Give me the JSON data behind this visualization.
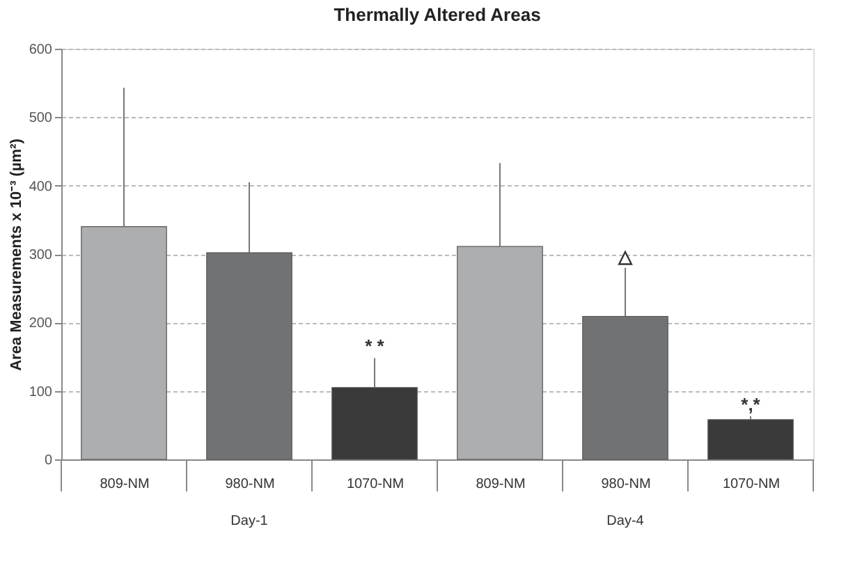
{
  "chart_data": {
    "type": "bar",
    "title": "Thermally Altered Areas",
    "ylabel": "Area Measurements x 10⁻³ (µm²)",
    "categories": [
      "809-NM",
      "980-NM",
      "1070-NM",
      "809-NM",
      "980-NM",
      "1070-NM"
    ],
    "values": [
      340,
      302,
      105,
      311,
      209,
      58
    ],
    "colors": [
      "#adaeb0",
      "#717274",
      "#3a3a3a",
      "#adaeb0",
      "#717274",
      "#3a3a3a"
    ],
    "errors": [
      [
        340,
        543
      ],
      [
        302,
        405
      ],
      [
        105,
        148
      ],
      [
        311,
        433
      ],
      [
        209,
        280
      ],
      [
        58,
        63
      ]
    ],
    "value_labels": [
      null,
      null,
      "* *",
      null,
      "△",
      "*,*"
    ],
    "annotations": [
      "Day-1",
      "Day-4"
    ],
    "ylim": [
      0,
      600
    ],
    "yticks": [
      0,
      100,
      200,
      300,
      400,
      500,
      600
    ],
    "grid": "y"
  }
}
